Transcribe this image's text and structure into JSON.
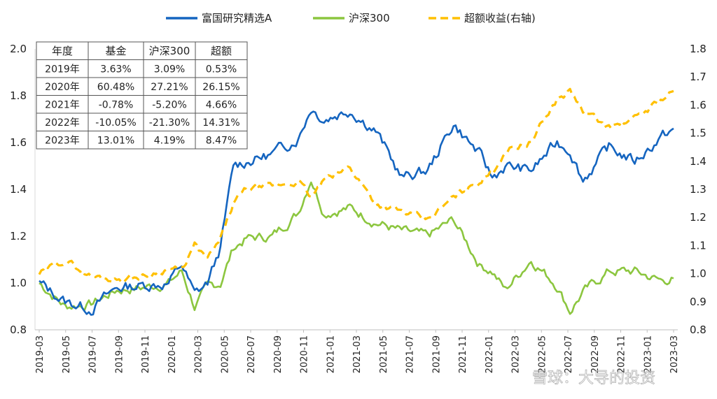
{
  "chart_data": {
    "type": "line",
    "series": [
      {
        "name": "富国研究精选A",
        "color": "#1565C0",
        "axis": "left"
      },
      {
        "name": "沪深300",
        "color": "#8CC63F",
        "axis": "left"
      },
      {
        "name": "超额收益(右轴)",
        "color": "#FFC000",
        "axis": "right",
        "dashed": true
      }
    ],
    "y_left": {
      "range": [
        0.8,
        2.0
      ],
      "ticks": [
        "0.8",
        "1.0",
        "1.2",
        "1.4",
        "1.6",
        "1.8",
        "2.0"
      ]
    },
    "y_right": {
      "range": [
        0.8,
        1.8
      ],
      "ticks": [
        "0.8",
        "0.9",
        "1.0",
        "1.1",
        "1.2",
        "1.3",
        "1.4",
        "1.5",
        "1.6",
        "1.7",
        "1.8"
      ]
    },
    "x_ticks": [
      "2019-03",
      "2019-05",
      "2019-07",
      "2019-09",
      "2019-11",
      "2020-01",
      "2020-03",
      "2020-05",
      "2020-07",
      "2020-09",
      "2020-11",
      "2021-01",
      "2021-03",
      "2021-05",
      "2021-07",
      "2021-09",
      "2021-11",
      "2022-01",
      "2022-03",
      "2022-05",
      "2022-07",
      "2022-09",
      "2022-11",
      "2023-01",
      "2023-03"
    ],
    "key_points": {
      "fund": [
        [
          0,
          1.0
        ],
        [
          2,
          0.92
        ],
        [
          4,
          0.89
        ],
        [
          6,
          0.98
        ],
        [
          8,
          0.99
        ],
        [
          10,
          1.0
        ],
        [
          11,
          1.08
        ],
        [
          12,
          0.95
        ],
        [
          13,
          1.0
        ],
        [
          14,
          1.15
        ],
        [
          15,
          1.5
        ],
        [
          16,
          1.52
        ],
        [
          18,
          1.55
        ],
        [
          20,
          1.62
        ],
        [
          21,
          1.75
        ],
        [
          22,
          1.7
        ],
        [
          24,
          1.74
        ],
        [
          26,
          1.65
        ],
        [
          28,
          1.45
        ],
        [
          30,
          1.48
        ],
        [
          32,
          1.68
        ],
        [
          34,
          1.55
        ],
        [
          35,
          1.45
        ],
        [
          36,
          1.5
        ],
        [
          38,
          1.48
        ],
        [
          40,
          1.6
        ],
        [
          41,
          1.57
        ],
        [
          42,
          1.44
        ],
        [
          44,
          1.58
        ],
        [
          46,
          1.52
        ],
        [
          48,
          1.62
        ],
        [
          49,
          1.66
        ]
      ],
      "csi300": [
        [
          0,
          1.0
        ],
        [
          2,
          0.9
        ],
        [
          4,
          0.91
        ],
        [
          6,
          0.97
        ],
        [
          8,
          0.98
        ],
        [
          10,
          1.0
        ],
        [
          11,
          1.05
        ],
        [
          12,
          0.9
        ],
        [
          13,
          0.98
        ],
        [
          14,
          1.0
        ],
        [
          15,
          1.15
        ],
        [
          16,
          1.19
        ],
        [
          18,
          1.2
        ],
        [
          20,
          1.3
        ],
        [
          21,
          1.45
        ],
        [
          22,
          1.3
        ],
        [
          24,
          1.32
        ],
        [
          26,
          1.26
        ],
        [
          28,
          1.22
        ],
        [
          30,
          1.2
        ],
        [
          32,
          1.27
        ],
        [
          34,
          1.08
        ],
        [
          35,
          1.05
        ],
        [
          36,
          0.97
        ],
        [
          38,
          1.1
        ],
        [
          40,
          0.99
        ],
        [
          41,
          0.88
        ],
        [
          42,
          0.96
        ],
        [
          44,
          1.05
        ],
        [
          46,
          1.05
        ],
        [
          48,
          1.01
        ],
        [
          49,
          1.02
        ]
      ],
      "excess": [
        [
          0,
          1.0
        ],
        [
          2,
          1.05
        ],
        [
          4,
          0.99
        ],
        [
          6,
          0.98
        ],
        [
          8,
          0.99
        ],
        [
          10,
          1.02
        ],
        [
          11,
          1.01
        ],
        [
          12,
          1.1
        ],
        [
          13,
          1.05
        ],
        [
          14,
          1.12
        ],
        [
          15,
          1.25
        ],
        [
          16,
          1.3
        ],
        [
          18,
          1.31
        ],
        [
          20,
          1.33
        ],
        [
          21,
          1.27
        ],
        [
          22,
          1.33
        ],
        [
          24,
          1.38
        ],
        [
          26,
          1.25
        ],
        [
          28,
          1.22
        ],
        [
          30,
          1.19
        ],
        [
          32,
          1.27
        ],
        [
          34,
          1.33
        ],
        [
          35,
          1.36
        ],
        [
          36,
          1.44
        ],
        [
          38,
          1.47
        ],
        [
          40,
          1.62
        ],
        [
          41,
          1.65
        ],
        [
          42,
          1.58
        ],
        [
          44,
          1.52
        ],
        [
          46,
          1.55
        ],
        [
          48,
          1.62
        ],
        [
          49,
          1.65
        ]
      ]
    }
  },
  "table": {
    "headers": [
      "年度",
      "基金",
      "沪深300",
      "超额"
    ],
    "rows": [
      [
        "2019年",
        "3.63%",
        "3.09%",
        "0.53%"
      ],
      [
        "2020年",
        "60.48%",
        "27.21%",
        "26.15%"
      ],
      [
        "2021年",
        "-0.78%",
        "-5.20%",
        "4.66%"
      ],
      [
        "2022年",
        "-10.05%",
        "-21.30%",
        "14.31%"
      ],
      [
        "2023年",
        "13.01%",
        "4.19%",
        "8.47%"
      ]
    ]
  },
  "watermark": "雪球：大导的投资"
}
